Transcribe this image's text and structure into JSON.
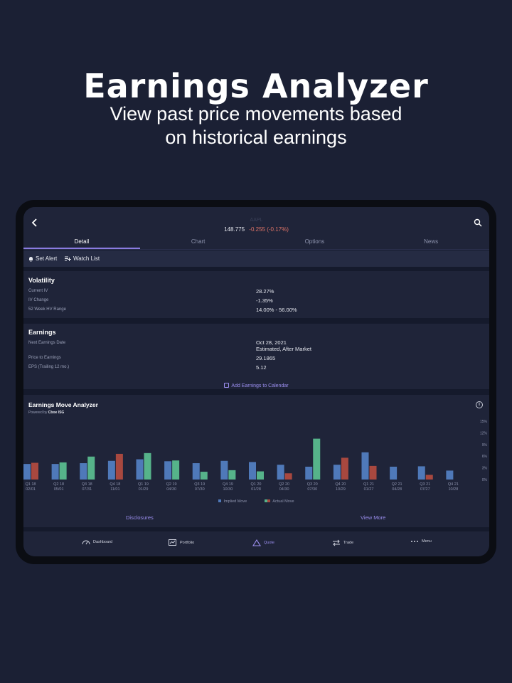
{
  "hero": {
    "title": "Earnings Analyzer",
    "subtitle_line1": "View past price movements based",
    "subtitle_line2": "on historical earnings"
  },
  "header": {
    "symbol": "AAPL",
    "price": "148.775",
    "change": "-0.255 (-0.17%)"
  },
  "tabs": [
    {
      "label": "Detail",
      "active": true
    },
    {
      "label": "Chart",
      "active": false
    },
    {
      "label": "Options",
      "active": false
    },
    {
      "label": "News",
      "active": false
    }
  ],
  "actions": {
    "set_alert": "Set Alert",
    "watch_list": "Watch List"
  },
  "volatility": {
    "title": "Volatility",
    "rows": [
      {
        "label": "Current IV",
        "value": "28.27%"
      },
      {
        "label": "IV Change",
        "value": "-1.35%"
      },
      {
        "label": "52 Week HV Range",
        "value": "14.00% - 56.00%"
      }
    ]
  },
  "earnings": {
    "title": "Earnings",
    "next_date_label": "Next Earnings Date",
    "next_date_value": "Oct 28, 2021",
    "next_date_note": "Estimated, After Market",
    "pe_label": "Price to Earnings",
    "pe_value": "29.1865",
    "eps_label": "EPS (Trailing 12 mo.)",
    "eps_value": "5.12",
    "add_calendar": "Add Earnings to Calendar"
  },
  "analyzer": {
    "title": "Earnings Move Analyzer",
    "powered_prefix": "Powered by",
    "powered_brand": "Cboe ISG",
    "disclosures": "Disclosures",
    "view_more": "View More"
  },
  "chart_data": {
    "type": "bar",
    "title": "Earnings Move Analyzer",
    "quarters": [
      "Q1 18",
      "Q2 18",
      "Q3 18",
      "Q4 18",
      "Q1 19",
      "Q2 19",
      "Q3 19",
      "Q4 19",
      "Q1 20",
      "Q2 20",
      "Q3 20",
      "Q4 20",
      "Q1 21",
      "Q2 21",
      "Q3 21",
      "Q4 21"
    ],
    "dates": [
      "02/01",
      "05/01",
      "07/31",
      "11/01",
      "01/29",
      "04/30",
      "07/30",
      "10/30",
      "01/28",
      "04/30",
      "07/30",
      "10/29",
      "01/27",
      "04/28",
      "07/27",
      "10/28"
    ],
    "series": [
      {
        "name": "Implied Move",
        "values": [
          4.0,
          4.0,
          4.2,
          4.8,
          5.2,
          4.7,
          4.2,
          4.8,
          4.5,
          3.8,
          3.3,
          3.8,
          7.0,
          3.3,
          3.4,
          2.3
        ]
      },
      {
        "name": "Actual Move",
        "values": [
          4.3,
          4.4,
          5.9,
          6.6,
          6.8,
          4.9,
          2.0,
          2.4,
          2.1,
          1.6,
          10.5,
          5.6,
          3.5,
          0,
          1.2,
          0
        ]
      }
    ],
    "actual_sign": [
      "down",
      "up",
      "up",
      "down",
      "up",
      "up",
      "up",
      "up",
      "up",
      "down",
      "up",
      "down",
      "down",
      "none",
      "down",
      "none"
    ],
    "yticks": [
      "15%",
      "12%",
      "9%",
      "6%",
      "3%",
      "0%"
    ],
    "ylim": [
      0,
      15
    ],
    "legend": [
      "Implied Move",
      "Actual Move"
    ],
    "colors": {
      "implied": "#4f79b9",
      "up": "#56b38a",
      "down": "#a8483f"
    }
  },
  "bottom_nav": [
    {
      "label": "Dashboard",
      "icon": "dashboard-icon",
      "active": false
    },
    {
      "label": "Portfolio",
      "icon": "portfolio-icon",
      "active": false
    },
    {
      "label": "Quote",
      "icon": "quote-triangle-icon",
      "active": true
    },
    {
      "label": "Trade",
      "icon": "trade-arrows-icon",
      "active": false
    },
    {
      "label": "Menu",
      "icon": "menu-dots-icon",
      "active": false
    }
  ]
}
